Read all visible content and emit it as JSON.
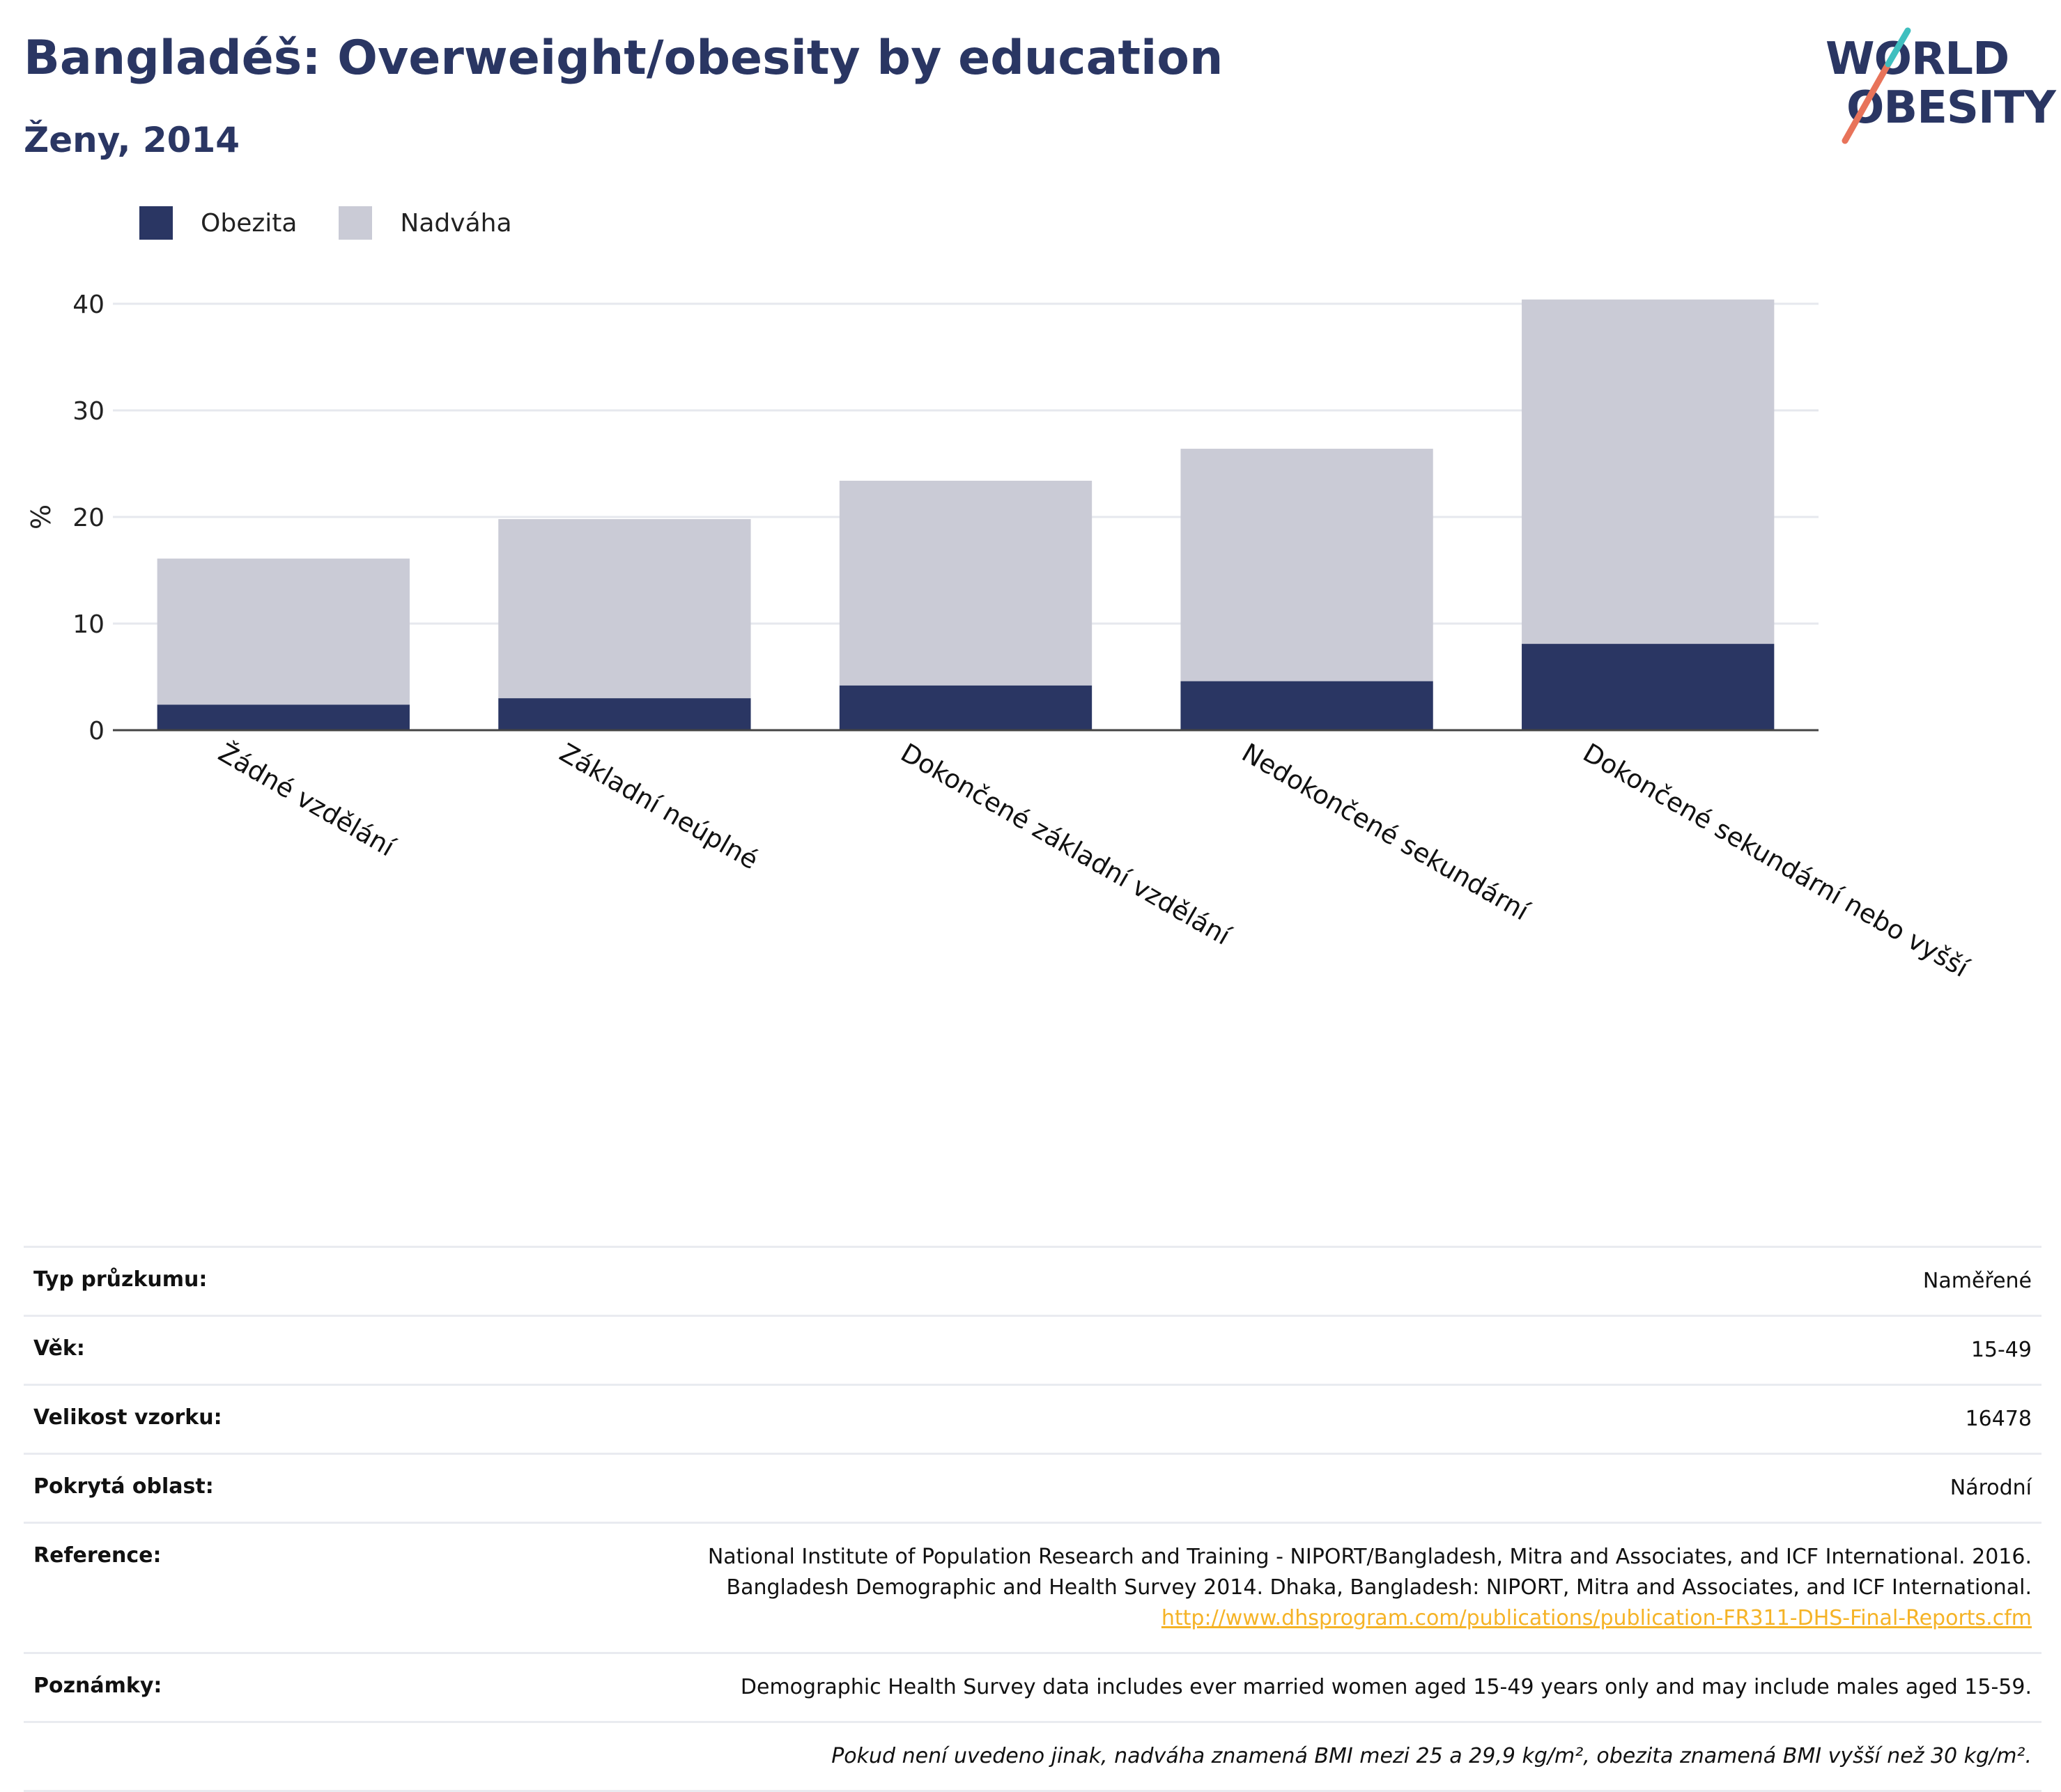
{
  "header": {
    "title": "Bangladéš: Overweight/obesity by education",
    "subtitle": "Ženy, 2014"
  },
  "logo": {
    "line1": "WORLD",
    "line2": "OBESITY"
  },
  "legend": [
    {
      "label": "Obezita",
      "color": "#2a3663"
    },
    {
      "label": "Nadváha",
      "color": "#cacbd6"
    }
  ],
  "chart_data": {
    "type": "bar",
    "stacked": true,
    "categories": [
      "Žádné vzdělání",
      "Základní neúplné",
      "Dokončené základní vzdělání",
      "Nedokončené sekundární",
      "Dokončené sekundární nebo vyšší"
    ],
    "series": [
      {
        "name": "Obezita",
        "color": "#2a3663",
        "values": [
          2.4,
          3.0,
          4.2,
          4.6,
          8.1
        ]
      },
      {
        "name": "Nadváha",
        "color": "#cacbd6",
        "values": [
          13.7,
          16.8,
          19.2,
          21.8,
          32.3
        ]
      }
    ],
    "ylabel": "%",
    "ylim": [
      0,
      40
    ],
    "yticks": [
      0,
      10,
      20,
      30,
      40
    ],
    "grid": true,
    "legend_position": "top-left"
  },
  "meta": {
    "survey_type": {
      "label": "Typ průzkumu:",
      "value": "Naměřené"
    },
    "age": {
      "label": "Věk:",
      "value": "15-49"
    },
    "sample_size": {
      "label": "Velikost vzorku:",
      "value": "16478"
    },
    "coverage": {
      "label": "Pokrytá oblast:",
      "value": "Národní"
    },
    "reference": {
      "label": "Reference:",
      "line1": "National Institute of Population Research and Training - NIPORT/Bangladesh, Mitra and Associates, and ICF International. 2016.",
      "line2": "Bangladesh Demographic and Health Survey 2014. Dhaka, Bangladesh: NIPORT, Mitra and Associates, and ICF International.",
      "link": "http://www.dhsprogram.com/publications/publication-FR311-DHS-Final-Reports.cfm"
    },
    "notes": {
      "label": "Poznámky:",
      "value": "Demographic Health Survey data includes ever married women aged 15-49 years only and may include males aged 15-59."
    },
    "footnote": "Pokud není uvedeno jinak, nadváha znamená BMI mezi 25 a 29,9 kg/m², obezita znamená BMI vyšší než 30 kg/m²."
  }
}
